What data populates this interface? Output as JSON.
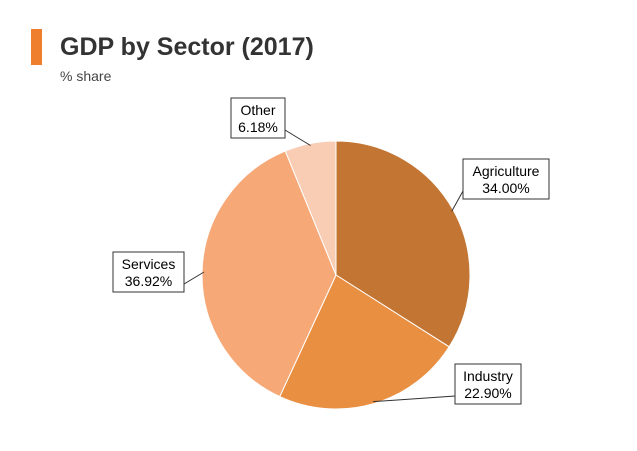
{
  "header": {
    "title": "GDP by Sector (2017)",
    "subtitle": "% share",
    "accent_color": "#F07F2D"
  },
  "chart_data": {
    "type": "pie",
    "title": "GDP by Sector (2017)",
    "subtitle": "% share",
    "unit": "%",
    "slices": [
      {
        "name": "Agriculture",
        "value": 34.0,
        "label": "34.00%",
        "color": "#C37533"
      },
      {
        "name": "Industry",
        "value": 22.9,
        "label": "22.90%",
        "color": "#E98F42"
      },
      {
        "name": "Services",
        "value": 36.92,
        "label": "36.92%",
        "color": "#F6A977"
      },
      {
        "name": "Other",
        "value": 6.18,
        "label": "6.18%",
        "color": "#F9CCB4"
      }
    ],
    "start_angle": "12 o'clock",
    "direction": "clockwise",
    "legend": "none",
    "data_labels": "callout boxes with name and percent"
  }
}
